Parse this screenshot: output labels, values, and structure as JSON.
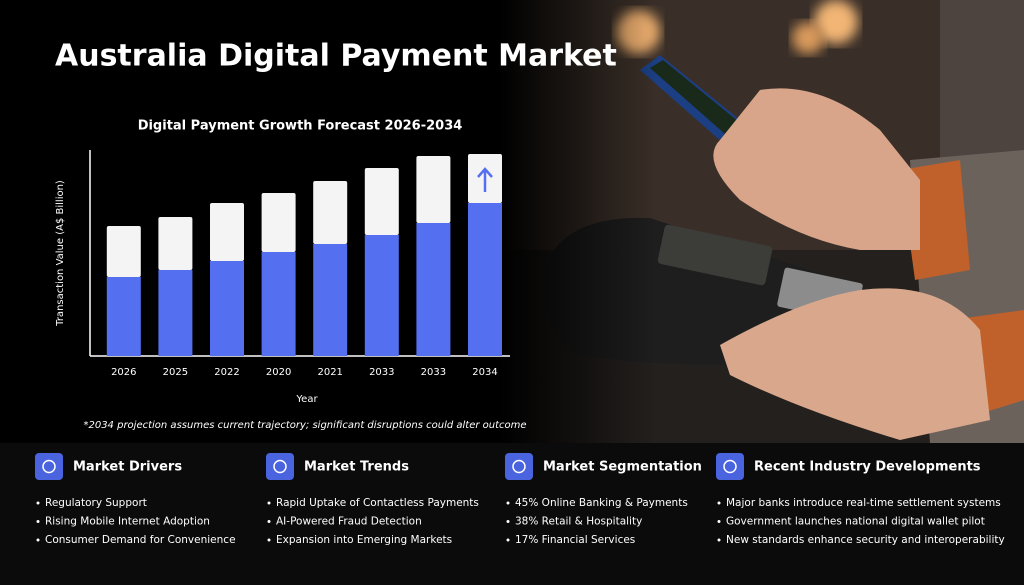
{
  "title": "Australia Digital Payment Market",
  "chart_data": {
    "type": "bar",
    "stacked": true,
    "title": "Digital Payment Growth Forecast 2026-2034",
    "x_label": "Year",
    "y_label": "Transaction Value (A$ Billion)",
    "categories": [
      "2026",
      "2025",
      "2022",
      "2020",
      "2021",
      "2033",
      "2033",
      "2034"
    ],
    "series": [
      {
        "color": "#5470f0",
        "values": [
          79,
          86,
          95,
          104,
          112,
          121,
          133,
          153
        ]
      },
      {
        "color": "#f4f4f4",
        "values": [
          51,
          53,
          58,
          59,
          63,
          67,
          67,
          49
        ]
      }
    ],
    "ylim": [
      0,
      206
    ],
    "note": "*2034 projection assumes current trajectory; significant disruptions could alter outcome"
  },
  "sections": [
    {
      "title": "Market Drivers",
      "items": [
        "Regulatory Support",
        "Rising Mobile Internet Adoption",
        "Consumer Demand for Convenience"
      ]
    },
    {
      "title": "Market Trends",
      "items": [
        "Rapid Uptake of Contactless Payments",
        "AI-Powered Fraud Detection",
        "Expansion into Emerging Markets"
      ]
    },
    {
      "title": "Market Segmentation",
      "items": [
        "45% Online Banking & Payments",
        "38% Retail & Hospitality",
        "17% Financial Services"
      ]
    },
    {
      "title": "Recent Industry Developments",
      "items": [
        "Major banks introduce real-time settlement systems",
        "Government launches national digital wallet pilot",
        "New standards enhance security and interoperability"
      ]
    }
  ]
}
